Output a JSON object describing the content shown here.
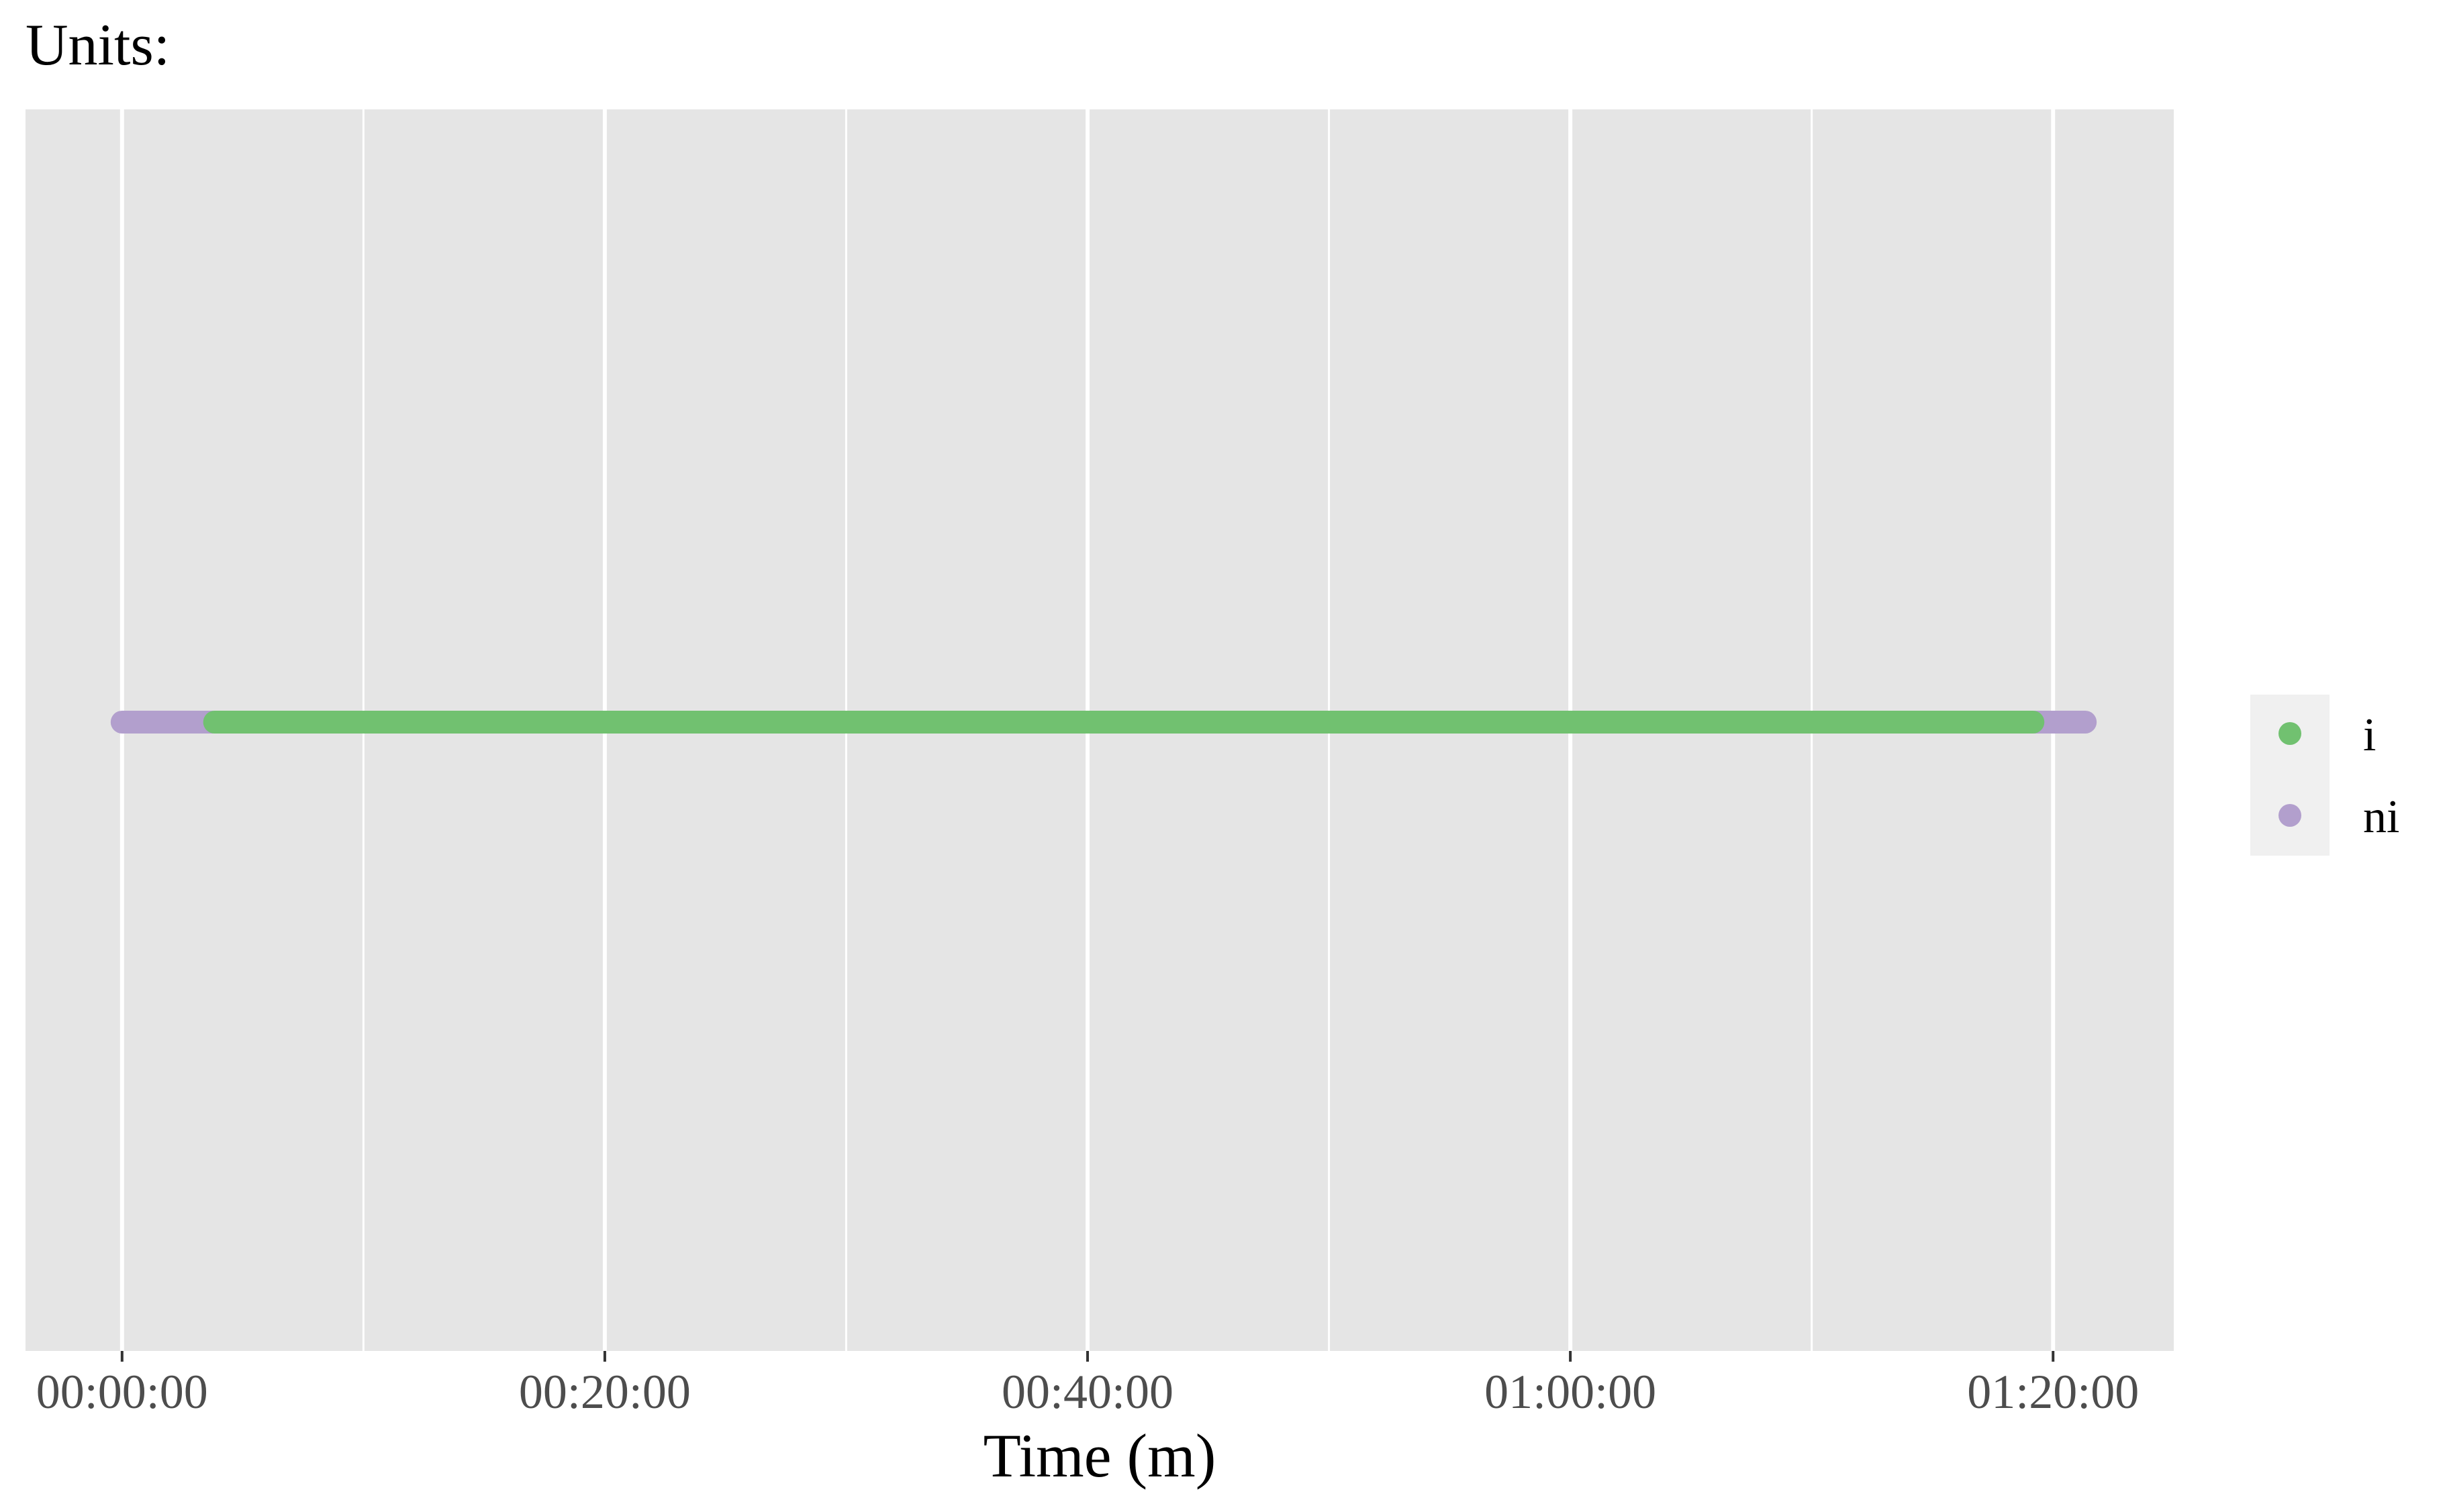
{
  "chart_data": {
    "type": "scatter",
    "title": "Units:",
    "xlabel": "Time (m)",
    "ylabel": "",
    "x_tick_labels": [
      "00:00:00",
      "00:20:00",
      "00:40:00",
      "01:00:00",
      "01:20:00"
    ],
    "xlim": [
      "-00:04:00",
      "01:25:00"
    ],
    "x_major_ticks": [
      "00:00:00",
      "00:20:00",
      "00:40:00",
      "01:00:00",
      "01:20:00"
    ],
    "x_minor_gridlines": [
      "00:10:00",
      "00:30:00",
      "00:50:00",
      "01:10:00"
    ],
    "y_axis_shown": false,
    "grid": true,
    "background": "#e5e5e5",
    "legend": {
      "position": "right",
      "entries": [
        {
          "label": "i",
          "color": "#71c170"
        },
        {
          "label": "ni",
          "color": "#b29fcd"
        }
      ]
    },
    "series": [
      {
        "legend_key": "i",
        "color": "#71c170",
        "segments": [
          {
            "start": "00:03:50",
            "end": "01:19:10"
          }
        ]
      },
      {
        "legend_key": "ni",
        "color": "#b29fcd",
        "segments": [
          {
            "start": "00:00:00",
            "end": "00:03:50"
          },
          {
            "start": "01:19:10",
            "end": "01:21:20"
          }
        ]
      }
    ]
  }
}
